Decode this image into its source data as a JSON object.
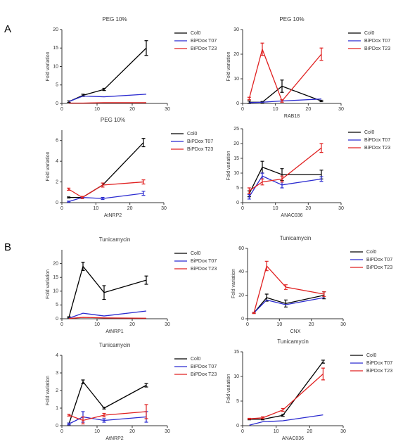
{
  "panel_labels": [
    "A",
    "B"
  ],
  "chart_data": [
    {
      "type": "line",
      "title": "PEG 10%",
      "ylabel": "Fold variation",
      "x": [
        2,
        6,
        12,
        24
      ],
      "xlim": [
        0,
        30
      ],
      "xticks": [
        0,
        10,
        20,
        30
      ],
      "ylim": [
        0,
        20
      ],
      "yticks": [
        0,
        5,
        10,
        15,
        20
      ],
      "series": [
        {
          "name": "Col0",
          "color": "#000000",
          "values": [
            0.5,
            2.2,
            3.8,
            15
          ],
          "errors": [
            0.2,
            0.3,
            0.3,
            2
          ]
        },
        {
          "name": "BiPDox T07",
          "color": "#2b2bd0",
          "values": [
            0.5,
            2.0,
            1.8,
            2.5
          ]
        },
        {
          "name": "BiPDox T23",
          "color": "#e02020",
          "values": [
            0.1,
            0.1,
            0.2,
            0.2
          ]
        }
      ]
    },
    {
      "type": "line",
      "title": "PEG 10%",
      "xlabel": "RAB18",
      "ylabel": "Fold variation",
      "x": [
        2,
        6,
        12,
        24
      ],
      "xlim": [
        0,
        30
      ],
      "xticks": [
        0,
        10,
        20,
        30
      ],
      "ylim": [
        0,
        30
      ],
      "yticks": [
        0,
        10,
        20,
        30
      ],
      "series": [
        {
          "name": "Col0",
          "color": "#000000",
          "values": [
            0.5,
            0.5,
            7,
            1
          ],
          "errors": [
            0.5,
            0.3,
            2.5,
            0.3
          ]
        },
        {
          "name": "BiPDox T07",
          "color": "#2b2bd0",
          "values": [
            0.3,
            0.5,
            1.0,
            1.8
          ]
        },
        {
          "name": "BiPDox T23",
          "color": "#e02020",
          "values": [
            2,
            22,
            1,
            20
          ],
          "errors": [
            0.5,
            2.5,
            0.5,
            2.5
          ]
        }
      ]
    },
    {
      "type": "line",
      "title": "PEG 10%",
      "xlabel": "AtNRP2",
      "ylabel": "Fold variation",
      "x": [
        2,
        6,
        12,
        24
      ],
      "xlim": [
        0,
        30
      ],
      "xticks": [
        0,
        10,
        20,
        30
      ],
      "ylim": [
        0,
        7
      ],
      "yticks": [
        0,
        2,
        4,
        6
      ],
      "series": [
        {
          "name": "Col0",
          "color": "#000000",
          "values": [
            0.5,
            0.5,
            1.7,
            5.8
          ],
          "errors": [
            0.05,
            0.1,
            0.2,
            0.4
          ]
        },
        {
          "name": "BiPDox T07",
          "color": "#2b2bd0",
          "values": [
            0.1,
            0.5,
            0.4,
            0.9
          ],
          "errors": [
            0.05,
            0.05,
            0.1,
            0.2
          ]
        },
        {
          "name": "BiPDox T23",
          "color": "#e02020",
          "values": [
            1.3,
            0.5,
            1.7,
            2.0
          ],
          "errors": [
            0.1,
            0.1,
            0.2,
            0.2
          ]
        }
      ]
    },
    {
      "type": "line",
      "xlabel": "ANAC036",
      "ylabel": "Fold variation",
      "x": [
        2,
        6,
        12,
        24
      ],
      "xlim": [
        0,
        30
      ],
      "xticks": [
        0,
        10,
        20,
        30
      ],
      "ylim": [
        0,
        25
      ],
      "yticks": [
        0,
        5,
        10,
        15,
        20,
        25
      ],
      "series": [
        {
          "name": "Col0",
          "color": "#000000",
          "values": [
            3,
            12,
            9.5,
            9.5
          ],
          "errors": [
            1,
            2,
            2,
            1.5
          ]
        },
        {
          "name": "BiPDox T07",
          "color": "#2b2bd0",
          "values": [
            2,
            9,
            6,
            8
          ],
          "errors": [
            0.8,
            1,
            1,
            0.8
          ]
        },
        {
          "name": "BiPDox T23",
          "color": "#e02020",
          "values": [
            4,
            7,
            8,
            18.5
          ],
          "errors": [
            1,
            1,
            1,
            1.5
          ]
        }
      ]
    },
    {
      "type": "line",
      "title": "Tunicamycin",
      "xlabel": "AtNRP1",
      "ylabel": "Fold variation",
      "x": [
        2,
        6,
        12,
        24
      ],
      "xlim": [
        0,
        30
      ],
      "xticks": [
        0,
        10,
        20,
        30
      ],
      "ylim": [
        0,
        25
      ],
      "yticks": [
        0,
        5,
        10,
        15,
        20
      ],
      "series": [
        {
          "name": "Col0",
          "color": "#000000",
          "values": [
            0.5,
            19,
            9.5,
            14
          ],
          "errors": [
            0.2,
            1.5,
            2.5,
            1.5
          ]
        },
        {
          "name": "BiPDox T07",
          "color": "#2b2bd0",
          "values": [
            0.2,
            2,
            1,
            2.8
          ]
        },
        {
          "name": "BiPDox T23",
          "color": "#e02020",
          "values": [
            0.1,
            0.5,
            0.3,
            0.2
          ]
        }
      ]
    },
    {
      "type": "line",
      "title": "Tunicamycin",
      "xlabel": "CNX",
      "ylabel": "Fold variation",
      "x": [
        2,
        6,
        12,
        24
      ],
      "xlim": [
        0,
        30
      ],
      "xticks": [
        0,
        10,
        20,
        30
      ],
      "ylim": [
        0,
        60
      ],
      "yticks": [
        0,
        20,
        40,
        60
      ],
      "series": [
        {
          "name": "Col0",
          "color": "#000000",
          "values": [
            5,
            18,
            13,
            20
          ],
          "errors": [
            0.5,
            3,
            3,
            3
          ]
        },
        {
          "name": "BiPDox T07",
          "color": "#2b2bd0",
          "values": [
            5,
            16,
            12,
            18
          ]
        },
        {
          "name": "BiPDox T23",
          "color": "#e02020",
          "values": [
            5,
            45,
            27,
            21
          ],
          "errors": [
            0.5,
            4,
            2,
            2
          ]
        }
      ]
    },
    {
      "type": "line",
      "title": "Tunicamycin",
      "xlabel": "AtNRP2",
      "ylabel": "Fold variation",
      "x": [
        2,
        6,
        12,
        24
      ],
      "xlim": [
        0,
        30
      ],
      "xticks": [
        0,
        10,
        20,
        30
      ],
      "ylim": [
        0,
        4
      ],
      "yticks": [
        0,
        1,
        2,
        3,
        4
      ],
      "series": [
        {
          "name": "Col0",
          "color": "#000000",
          "values": [
            0.1,
            2.5,
            1.0,
            2.3
          ],
          "errors": [
            0.05,
            0.1,
            0.05,
            0.1
          ]
        },
        {
          "name": "BiPDox T07",
          "color": "#2b2bd0",
          "values": [
            0.1,
            0.5,
            0.3,
            0.5
          ],
          "errors": [
            0.05,
            0.3,
            0.1,
            0.3
          ]
        },
        {
          "name": "BiPDox T23",
          "color": "#e02020",
          "values": [
            0.6,
            0.3,
            0.6,
            0.8
          ],
          "errors": [
            0.05,
            0.2,
            0.1,
            0.4
          ]
        }
      ]
    },
    {
      "type": "line",
      "title": "Tunicamycin",
      "xlabel": "ANAC036",
      "ylabel": "Fold variation",
      "x": [
        2,
        6,
        12,
        24
      ],
      "xlim": [
        0,
        30
      ],
      "xticks": [
        0,
        10,
        20,
        30
      ],
      "ylim": [
        0,
        15
      ],
      "yticks": [
        0,
        5,
        10,
        15
      ],
      "series": [
        {
          "name": "Col0",
          "color": "#000000",
          "values": [
            1.3,
            1.3,
            2.1,
            13
          ],
          "errors": [
            0.1,
            0.1,
            0.2,
            0.3
          ]
        },
        {
          "name": "BiPDox T07",
          "color": "#2b2bd0",
          "values": [
            0.1,
            0.8,
            1.0,
            2.2
          ]
        },
        {
          "name": "BiPDox T23",
          "color": "#e02020",
          "values": [
            1.4,
            1.6,
            3.2,
            10.5
          ],
          "errors": [
            0.1,
            0.2,
            0.3,
            1.2
          ]
        }
      ]
    }
  ]
}
